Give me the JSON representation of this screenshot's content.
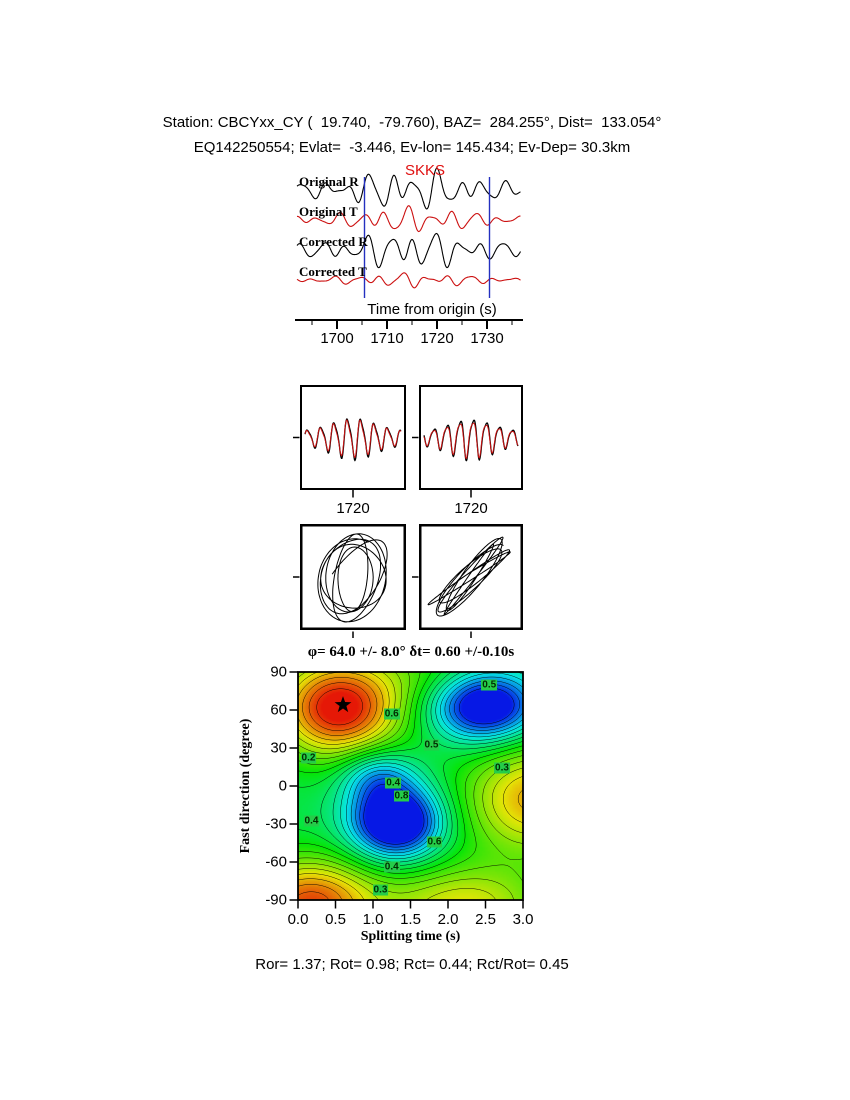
{
  "header": {
    "line1": "Station: CBCYxx_CY (  19.740,  -79.760), BAZ=  284.255°, Dist=  133.054°",
    "line2": "EQ142250554; Evlat=  -3.446, Ev-lon= 145.434; Ev-Dep= 30.3km"
  },
  "waveform_panel": {
    "phase_label": "SKKS",
    "traces": [
      "Original R",
      "Original T",
      "Corrected R",
      "Corrected T"
    ],
    "xlabel": "Time from origin (s)",
    "xticks": [
      1700,
      1710,
      1720,
      1730
    ]
  },
  "pair_panel": {
    "xticks": [
      "1720",
      "1720"
    ]
  },
  "contour": {
    "title": "φ= 64.0 +/- 8.0° δt= 0.60 +/-0.10s",
    "xlabel": "Splitting time (s)",
    "ylabel": "Fast direction (degree)",
    "xticks": [
      "0.0",
      "0.5",
      "1.0",
      "1.5",
      "2.0",
      "2.5",
      "3.0"
    ],
    "yticks": [
      "90",
      "60",
      "30",
      "0",
      "-30",
      "-60",
      "-90"
    ]
  },
  "results": {
    "Ror": "1.37",
    "Rot": "0.98",
    "Rct": "0.44",
    "Rct_over_Rot": "0.45"
  },
  "footer": "Ror= 1.37; Rot= 0.98; Rct= 0.44; Rct/Rot= 0.45",
  "chart_data": [
    {
      "type": "line",
      "name": "radial-transverse-waveforms",
      "xlabel": "Time from origin (s)",
      "x_range": [
        1692,
        1737
      ],
      "xticks": [
        1700,
        1710,
        1720,
        1730
      ],
      "window": [
        1705.5,
        1730.5
      ],
      "phase_marker": {
        "label": "SKKS",
        "color": "#e01010"
      },
      "envelope": {
        "center": 1715,
        "width": 13,
        "floor": 0.3
      },
      "traces": [
        {
          "name": "Original R",
          "color": "#000000",
          "periods": [
            4.5,
            7.0,
            2.8
          ],
          "components": [
            1,
            0.6,
            0.35
          ],
          "phases": [
            0.0,
            1.3,
            2.1
          ]
        },
        {
          "name": "Original T",
          "color": "#cc1111",
          "periods": [
            4.5,
            7.0,
            2.8
          ],
          "components": [
            1,
            0.5,
            0.3
          ],
          "phases": [
            2.1,
            0.4,
            1.0
          ]
        },
        {
          "name": "Corrected R",
          "color": "#000000",
          "periods": [
            4.5,
            7.0,
            2.8
          ],
          "components": [
            1,
            0.55,
            0.3
          ],
          "phases": [
            0.6,
            2.2,
            0.3
          ]
        },
        {
          "name": "Corrected T",
          "color": "#cc1111",
          "periods": [
            4.5,
            7.0,
            2.8
          ],
          "components": [
            1,
            0.6,
            0.4
          ],
          "phases": [
            3.5,
            1.6,
            2.6
          ]
        }
      ]
    },
    {
      "type": "line",
      "name": "fast-slow-pair-original",
      "xticks": [
        "1720"
      ],
      "cycles": 7.2,
      "phase": 0.25,
      "harmonic_phase": 1.1,
      "red_phase_offset": 0.13
    },
    {
      "type": "line",
      "name": "fast-slow-pair-corrected",
      "xticks": [
        "1720"
      ],
      "cycles": 7.2,
      "phase": 3.05,
      "harmonic_phase": 2.0,
      "red_phase_offset": 0.15
    },
    {
      "type": "scatter",
      "name": "particle-motion-original",
      "style": "elliptical",
      "turns": 6.3,
      "tilt_deg": 66
    },
    {
      "type": "scatter",
      "name": "particle-motion-corrected",
      "style": "linear",
      "turns": 6.3,
      "tilt_deg": 44
    },
    {
      "type": "heatmap",
      "name": "splitting-error-surface",
      "title": "φ= 64.0 +/- 8.0° δt= 0.60 +/-0.10s",
      "xlabel": "Splitting time (s)",
      "ylabel": "Fast direction (degree)",
      "xlim": [
        0,
        3
      ],
      "ylim": [
        -90,
        90
      ],
      "xticks": [
        0,
        0.5,
        1,
        1.5,
        2,
        2.5,
        3
      ],
      "yticks": [
        90,
        60,
        30,
        0,
        -30,
        -60,
        -90
      ],
      "best_solution": {
        "fast_direction_deg": 64.0,
        "fast_direction_err_deg": 8.0,
        "delay_time_s": 0.6,
        "delay_time_err_s": 0.1
      },
      "star": {
        "x": 0.6,
        "y": 64
      },
      "base": 0.42,
      "gaussians": [
        {
          "a": 0.6,
          "x": 0.55,
          "y": 62,
          "sx": 0.85,
          "sy": 40
        },
        {
          "a": 0.5,
          "x": 0.15,
          "y": -92,
          "sx": 0.9,
          "sy": 35
        },
        {
          "a": 0.4,
          "x": 3.15,
          "y": -10,
          "sx": 0.95,
          "sy": 45
        },
        {
          "a": 0.32,
          "x": 2.2,
          "y": -95,
          "sx": 1.1,
          "sy": 33
        },
        {
          "a": -0.55,
          "x": 2.5,
          "y": 63,
          "sx": 0.68,
          "sy": 27
        },
        {
          "a": -0.62,
          "x": 1.3,
          "y": -28,
          "sx": 0.58,
          "sy": 28
        },
        {
          "a": -0.25,
          "x": 1.05,
          "y": 8,
          "sx": 0.5,
          "sy": 22
        },
        {
          "a": 0.1,
          "x": 1.8,
          "y": 90,
          "sx": 0.8,
          "sy": 25
        }
      ],
      "contour_levels": {
        "min": 0.05,
        "max": 0.95,
        "step": 0.05
      },
      "contour_labels": [
        {
          "v": "0.5",
          "x": 2.55,
          "y": 80
        },
        {
          "v": "0.6",
          "x": 1.25,
          "y": 57
        },
        {
          "v": "0.2",
          "x": 0.14,
          "y": 22
        },
        {
          "v": "0.5",
          "x": 1.78,
          "y": 32
        },
        {
          "v": "0.4",
          "x": 1.27,
          "y": 2
        },
        {
          "v": "0.8",
          "x": 1.38,
          "y": -8
        },
        {
          "v": "0.4",
          "x": 0.18,
          "y": -28
        },
        {
          "v": "0.6",
          "x": 1.82,
          "y": -44
        },
        {
          "v": "0.4",
          "x": 1.25,
          "y": -64
        },
        {
          "v": "0.3",
          "x": 1.1,
          "y": -82
        },
        {
          "v": "0.3",
          "x": 2.72,
          "y": 14
        }
      ]
    }
  ]
}
